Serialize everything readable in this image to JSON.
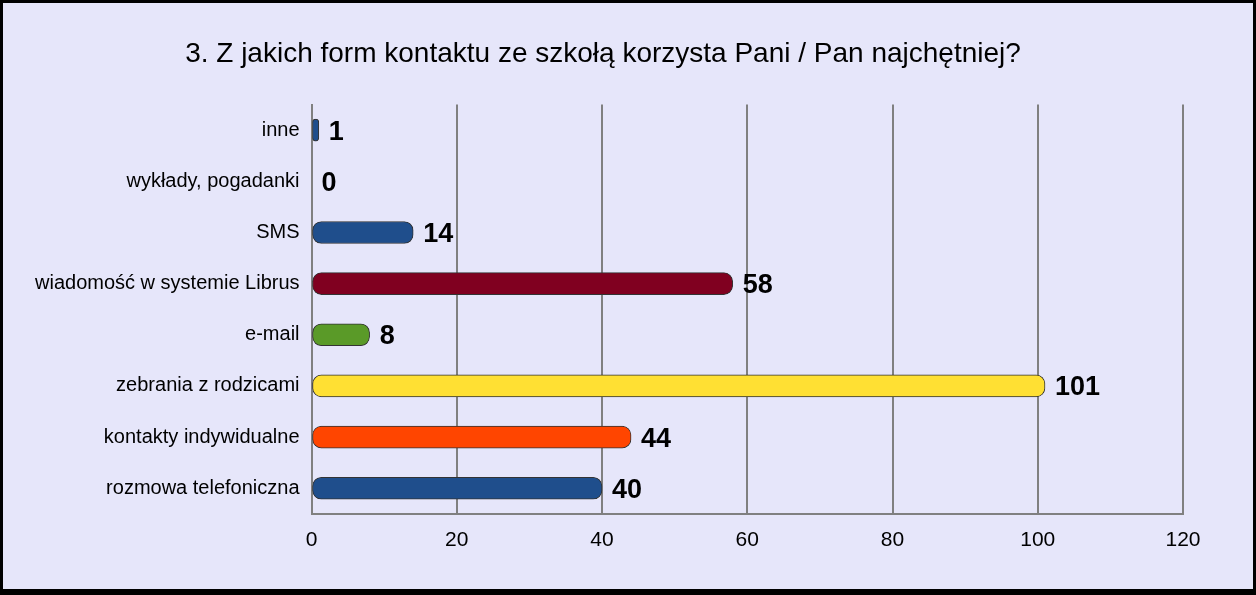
{
  "chart_data": {
    "type": "bar",
    "orientation": "horizontal",
    "title": "3. Z jakich form kontaktu ze szkołą korzysta Pani / Pan najchętniej?",
    "categories": [
      "inne",
      "wykłady, pogadanki",
      "SMS",
      "wiadomość w systemie Librus",
      "e-mail",
      "zebrania z rodzicami",
      "kontakty indywidualne",
      "rozmowa telefoniczna"
    ],
    "values": [
      1,
      0,
      14,
      58,
      8,
      101,
      44,
      40
    ],
    "colors": [
      "#1f4e8c",
      "#1f4e8c",
      "#1f4e8c",
      "#800020",
      "#5a9a28",
      "#ffe033",
      "#ff4500",
      "#1f4e8c"
    ],
    "xlim": [
      0,
      120
    ],
    "xticks": [
      0,
      20,
      40,
      60,
      80,
      100,
      120
    ],
    "grid": true,
    "data_labels": true
  }
}
